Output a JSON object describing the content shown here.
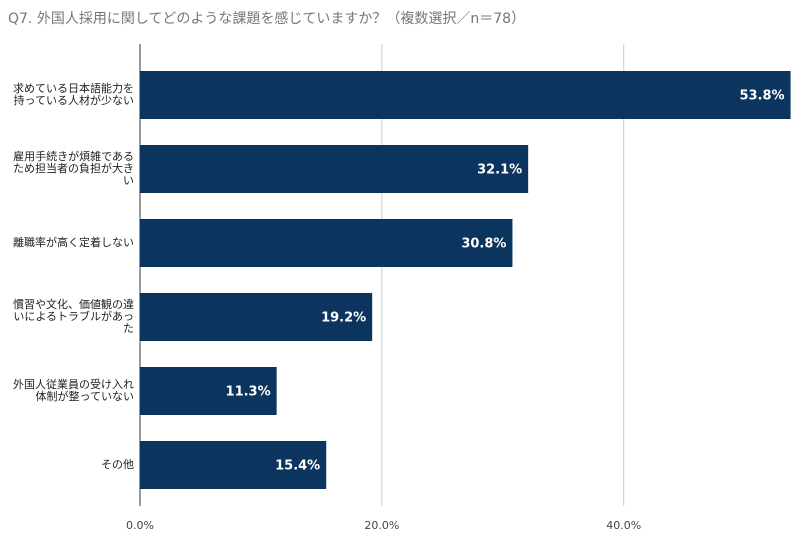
{
  "chart_data": {
    "type": "bar",
    "orientation": "horizontal",
    "title": "Q7. 外国人採用に関してどのような課題を感じていますか？（複数選択／n＝78）",
    "categories": [
      "求めている日本語能力を持っている人材が少ない",
      "雇用手続きが煩雑であるため担当者の負担が大きい",
      "離職率が高く定着しない",
      "慣習や文化、価値観の違いによるトラブルがあった",
      "外国人従業員の受け入れ体制が整っていない",
      "その他"
    ],
    "values": [
      53.8,
      32.1,
      30.8,
      19.2,
      11.3,
      15.4
    ],
    "value_labels": [
      "53.8%",
      "32.1%",
      "30.8%",
      "19.2%",
      "11.3%",
      "15.4%"
    ],
    "color": "#0b355f",
    "xlim": [
      0,
      54
    ],
    "xticks": [
      {
        "value": 0,
        "label": "0.0%"
      },
      {
        "value": 20,
        "label": "20.0%"
      },
      {
        "value": 40,
        "label": "40.0%"
      }
    ],
    "grid": true
  }
}
